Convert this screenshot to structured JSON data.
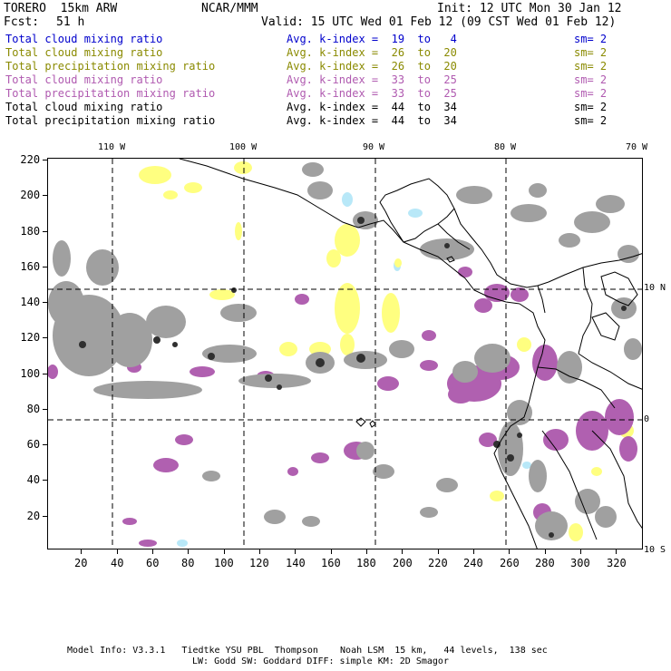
{
  "header": {
    "model": "TORERO  15km ARW",
    "org": "NCAR/MMM",
    "init": "Init: 12 UTC Mon 30 Jan 12",
    "fcst_label": "Fcst:",
    "fcst_value": "51 h",
    "valid": "Valid: 15 UTC Wed 01 Feb 12 (09 CST Wed 01 Feb 12)"
  },
  "legend": [
    {
      "field": "Total cloud mixing ratio",
      "index": "Avg. k-index =  19  to   4",
      "sm": "sm= 2",
      "color": "#0000cc"
    },
    {
      "field": "Total cloud mixing ratio",
      "index": "Avg. k-index =  26  to  20",
      "sm": "sm= 2",
      "color": "#8a8a00"
    },
    {
      "field": "Total precipitation mixing ratio",
      "index": "Avg. k-index =  26  to  20",
      "sm": "sm= 2",
      "color": "#8a8a00"
    },
    {
      "field": "Total cloud mixing ratio",
      "index": "Avg. k-index =  33  to  25",
      "sm": "sm= 2",
      "color": "#b05ab0"
    },
    {
      "field": "Total precipitation mixing ratio",
      "index": "Avg. k-index =  33  to  25",
      "sm": "sm= 2",
      "color": "#b05ab0"
    },
    {
      "field": "Total cloud mixing ratio",
      "index": "Avg. k-index =  44  to  34",
      "sm": "sm= 2",
      "color": "#000000"
    },
    {
      "field": "Total precipitation mixing ratio",
      "index": "Avg. k-index =  44  to  34",
      "sm": "sm= 2",
      "color": "#000000"
    }
  ],
  "lon_labels": [
    "110 W",
    "100 W",
    "90 W",
    "80 W",
    "70 W"
  ],
  "lat_labels": [
    "10 N",
    "0",
    "10 S"
  ],
  "x_ticks": [
    "20",
    "40",
    "60",
    "80",
    "100",
    "120",
    "140",
    "160",
    "180",
    "200",
    "220",
    "240",
    "260",
    "280",
    "300",
    "320"
  ],
  "y_ticks": [
    "220",
    "200",
    "180",
    "160",
    "140",
    "120",
    "100",
    "80",
    "60",
    "40",
    "20"
  ],
  "footer": {
    "line1": "Model Info: V3.3.1   Tiedtke YSU PBL  Thompson    Noah LSM  15 km,   44 levels,  138 sec",
    "line2": "LW: Godd SW: Goddard DIFF: simple KM: 2D Smagor"
  },
  "colors": {
    "cloud_light": "#b8e8f8",
    "yellow": "#ffff80",
    "purple": "#b060b0",
    "gray": "#a0a0a0",
    "dark": "#303030",
    "coast": "#000000"
  }
}
